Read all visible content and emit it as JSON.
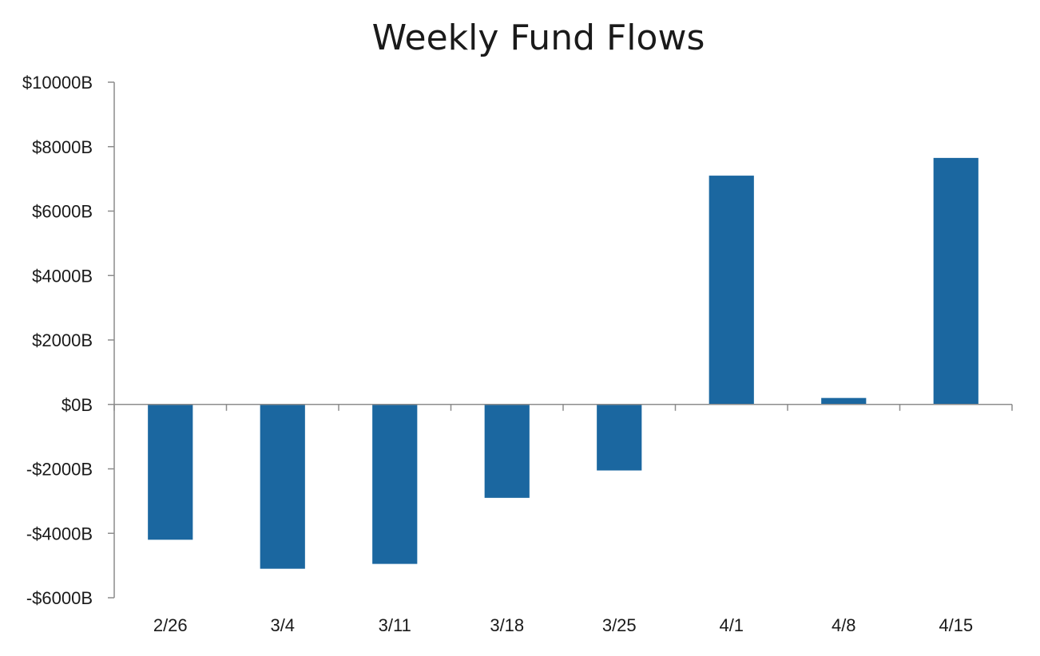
{
  "chart_data": {
    "type": "bar",
    "title": "Weekly Fund Flows",
    "xlabel": "",
    "ylabel": "",
    "categories": [
      "2/26",
      "3/4",
      "3/11",
      "3/18",
      "3/25",
      "4/1",
      "4/8",
      "4/15"
    ],
    "series": [
      {
        "values": [
          -4200,
          -5100,
          -4950,
          -2900,
          -2050,
          7100,
          200,
          7650
        ],
        "color": "#1b67a0"
      }
    ],
    "ylim": [
      -6000,
      10000
    ],
    "yticks": [
      10000,
      8000,
      6000,
      4000,
      2000,
      0,
      -2000,
      -4000,
      -6000
    ],
    "ytick_labels": [
      "$10000B",
      "$8000B",
      "$6000B",
      "$4000B",
      "$2000B",
      "$0B",
      "-$2000B",
      "-$4000B",
      "-$6000B"
    ],
    "grid": false,
    "legend": "none"
  }
}
